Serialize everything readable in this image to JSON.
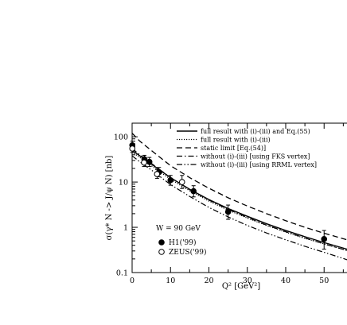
{
  "chart_data": {
    "type": "line",
    "xlabel": "Q²  [GeV²]",
    "ylabel": "σ(γ* N -> J/ψ N) [nb]",
    "xlim": [
      0,
      57
    ],
    "ylim": [
      0.1,
      200
    ],
    "yscale": "log",
    "x_ticks": [
      0,
      10,
      20,
      30,
      40,
      50
    ],
    "y_ticks": [
      {
        "value": 0.1,
        "label": "0.1"
      },
      {
        "value": 1,
        "label": "1"
      },
      {
        "value": 10,
        "label": "10"
      },
      {
        "value": 100,
        "label": "100"
      }
    ],
    "annotation": "W = 90 GeV",
    "legend_position": "top-right",
    "series": [
      {
        "name": "full result with (i)-(iii) and Eq.(55)",
        "style": "solid",
        "x": [
          0,
          2,
          5,
          10,
          15,
          20,
          25,
          30,
          35,
          40,
          45,
          50,
          57
        ],
        "y": [
          50,
          38,
          25,
          12.5,
          6.9,
          4.1,
          2.6,
          1.75,
          1.2,
          0.85,
          0.62,
          0.46,
          0.31
        ]
      },
      {
        "name": "full result with (i)-(iii)",
        "style": "dotted",
        "x": [
          0,
          2,
          5,
          10,
          15,
          20,
          25,
          30,
          35,
          40,
          45,
          50,
          57
        ],
        "y": [
          46,
          35,
          23,
          11.5,
          6.4,
          3.8,
          2.4,
          1.6,
          1.1,
          0.78,
          0.57,
          0.43,
          0.29
        ]
      },
      {
        "name": "static limit [Eq.(54)]",
        "style": "dashed",
        "x": [
          0,
          2,
          5,
          10,
          15,
          20,
          25,
          30,
          35,
          40,
          45,
          50,
          57
        ],
        "y": [
          120,
          80,
          50,
          23,
          12.5,
          7.3,
          4.5,
          2.95,
          2.0,
          1.4,
          1.0,
          0.74,
          0.5
        ]
      },
      {
        "name": "without (i)-(iii) [using FKS vertex]",
        "style": "dashdot",
        "x": [
          0,
          2,
          5,
          10,
          15,
          20,
          25,
          30,
          35,
          40,
          45,
          50,
          57
        ],
        "y": [
          55,
          40,
          26,
          12.5,
          6.8,
          4.0,
          2.5,
          1.65,
          1.12,
          0.8,
          0.58,
          0.43,
          0.29
        ]
      },
      {
        "name": "without (i)-(iii) [using RRML vertex]",
        "style": "dashdotdot",
        "x": [
          0,
          2,
          5,
          10,
          15,
          20,
          25,
          30,
          35,
          40,
          45,
          50,
          57
        ],
        "y": [
          38,
          28,
          18.5,
          8.8,
          4.8,
          2.75,
          1.7,
          1.1,
          0.75,
          0.53,
          0.38,
          0.28,
          0.18
        ]
      }
    ],
    "data_sets": [
      {
        "name": "H1('99)",
        "marker": "filled-circle",
        "points": [
          {
            "x": 0.05,
            "y": 65,
            "lo": 52,
            "hi": 80
          },
          {
            "x": 3.2,
            "y": 32,
            "lo": 26,
            "hi": 39
          },
          {
            "x": 4.5,
            "y": 28,
            "lo": 22,
            "hi": 35
          },
          {
            "x": 7,
            "y": 16.5,
            "lo": 13,
            "hi": 21
          },
          {
            "x": 10,
            "y": 11,
            "lo": 8.5,
            "hi": 14
          },
          {
            "x": 16,
            "y": 6.3,
            "lo": 4.7,
            "hi": 8.3
          },
          {
            "x": 25,
            "y": 2.2,
            "lo": 1.5,
            "hi": 3.1
          },
          {
            "x": 50,
            "y": 0.55,
            "lo": 0.33,
            "hi": 0.85
          }
        ]
      },
      {
        "name": "ZEUS('99)",
        "marker": "open-circle",
        "points": [
          {
            "x": 0.05,
            "y": 55,
            "lo": 45,
            "hi": 68
          },
          {
            "x": 3.1,
            "y": 27,
            "lo": 22,
            "hi": 33
          },
          {
            "x": 6.5,
            "y": 15,
            "lo": 12,
            "hi": 19
          },
          {
            "x": 13,
            "y": 10,
            "lo": 7.2,
            "hi": 14
          }
        ]
      }
    ]
  }
}
